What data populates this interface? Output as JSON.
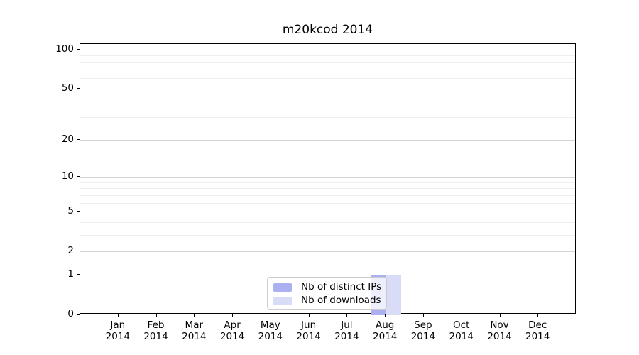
{
  "chart_data": {
    "type": "bar",
    "title": "m20kcod 2014",
    "categories": [
      "Jan",
      "Feb",
      "Mar",
      "Apr",
      "May",
      "Jun",
      "Jul",
      "Aug",
      "Sep",
      "Oct",
      "Nov",
      "Dec"
    ],
    "x_year_label": "2014",
    "series": [
      {
        "name": "Nb of distinct IPs",
        "color": "#aab0f0",
        "values": [
          0,
          0,
          0,
          0,
          0,
          0,
          0,
          1,
          0,
          0,
          0,
          0
        ]
      },
      {
        "name": "Nb of downloads",
        "color": "#d9dcf7",
        "values": [
          0,
          0,
          0,
          0,
          0,
          0,
          0,
          1,
          0,
          0,
          0,
          0
        ]
      }
    ],
    "xlabel": "",
    "ylabel": "",
    "yscale": "log1p",
    "ylim": [
      0,
      110
    ],
    "yticks": [
      0,
      1,
      2,
      5,
      10,
      20,
      50,
      100
    ],
    "minor_gridlines": [
      3,
      4,
      6,
      7,
      8,
      9,
      30,
      40,
      60,
      70,
      80,
      90
    ],
    "grid": true,
    "legend_position": "lower-center"
  },
  "style": {
    "grid_major_color": "#d3d3d3",
    "grid_minor_color": "#efefef",
    "frame_color": "#000000",
    "text_color": "#000000",
    "legend_border_color": "#cccccc",
    "background_color": "#ffffff"
  }
}
